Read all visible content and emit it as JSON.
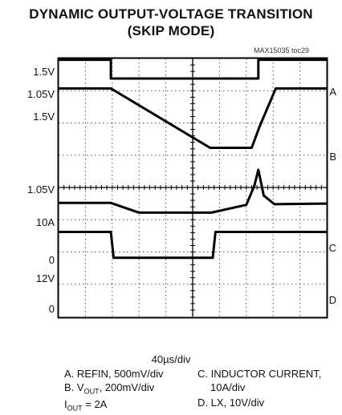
{
  "chart_data": {
    "type": "line",
    "title_line1": "DYNAMIC OUTPUT-VOLTAGE TRANSITION",
    "title_line2": "(SKIP MODE)",
    "figure_code": "MAX15035 toc29",
    "time_division": "40µs/div",
    "grid": true,
    "x_range": [
      0,
      10
    ],
    "y_range": [
      0,
      8
    ],
    "left_labels": [
      "1.5V",
      "1.05V",
      "1.5V",
      "1.05V",
      "10A",
      "0",
      "12V",
      "0"
    ],
    "right_labels": [
      "A",
      "B",
      "C",
      "D"
    ],
    "legend": {
      "a": "A. REFIN, 500mV/div",
      "b_prefix": "B. V",
      "b_sub": "OUT",
      "b_suffix": ", 200mV/div",
      "c1": "C. INDUCTOR CURRENT,",
      "c2": "10A/div",
      "d": "D. LX, 10V/div",
      "iout_prefix": "I",
      "iout_sub": "OUT",
      "iout_suffix": " = 2A"
    },
    "series": [
      {
        "name": "A",
        "x": [
          0,
          1.95,
          1.95,
          7.45,
          7.45,
          10
        ],
        "y": [
          7.96,
          7.96,
          7.38,
          7.38,
          7.96,
          7.96
        ]
      },
      {
        "name": "B",
        "x": [
          0,
          1.95,
          5.65,
          7.2,
          7.5,
          8.1,
          10
        ],
        "y": [
          7.07,
          7.07,
          5.23,
          5.23,
          5.9,
          7.07,
          7.07
        ]
      },
      {
        "name": "C",
        "x": [
          0,
          1.95,
          3.0,
          5.7,
          7.0,
          7.3,
          7.45,
          7.65,
          8.05,
          10
        ],
        "y": [
          3.52,
          3.52,
          3.22,
          3.22,
          3.46,
          4.05,
          4.55,
          3.75,
          3.48,
          3.5
        ]
      },
      {
        "name": "D",
        "x": [
          0,
          1.95,
          2.05,
          5.75,
          5.85,
          10
        ],
        "y": [
          2.62,
          2.62,
          1.82,
          1.82,
          2.62,
          2.62
        ]
      }
    ]
  }
}
